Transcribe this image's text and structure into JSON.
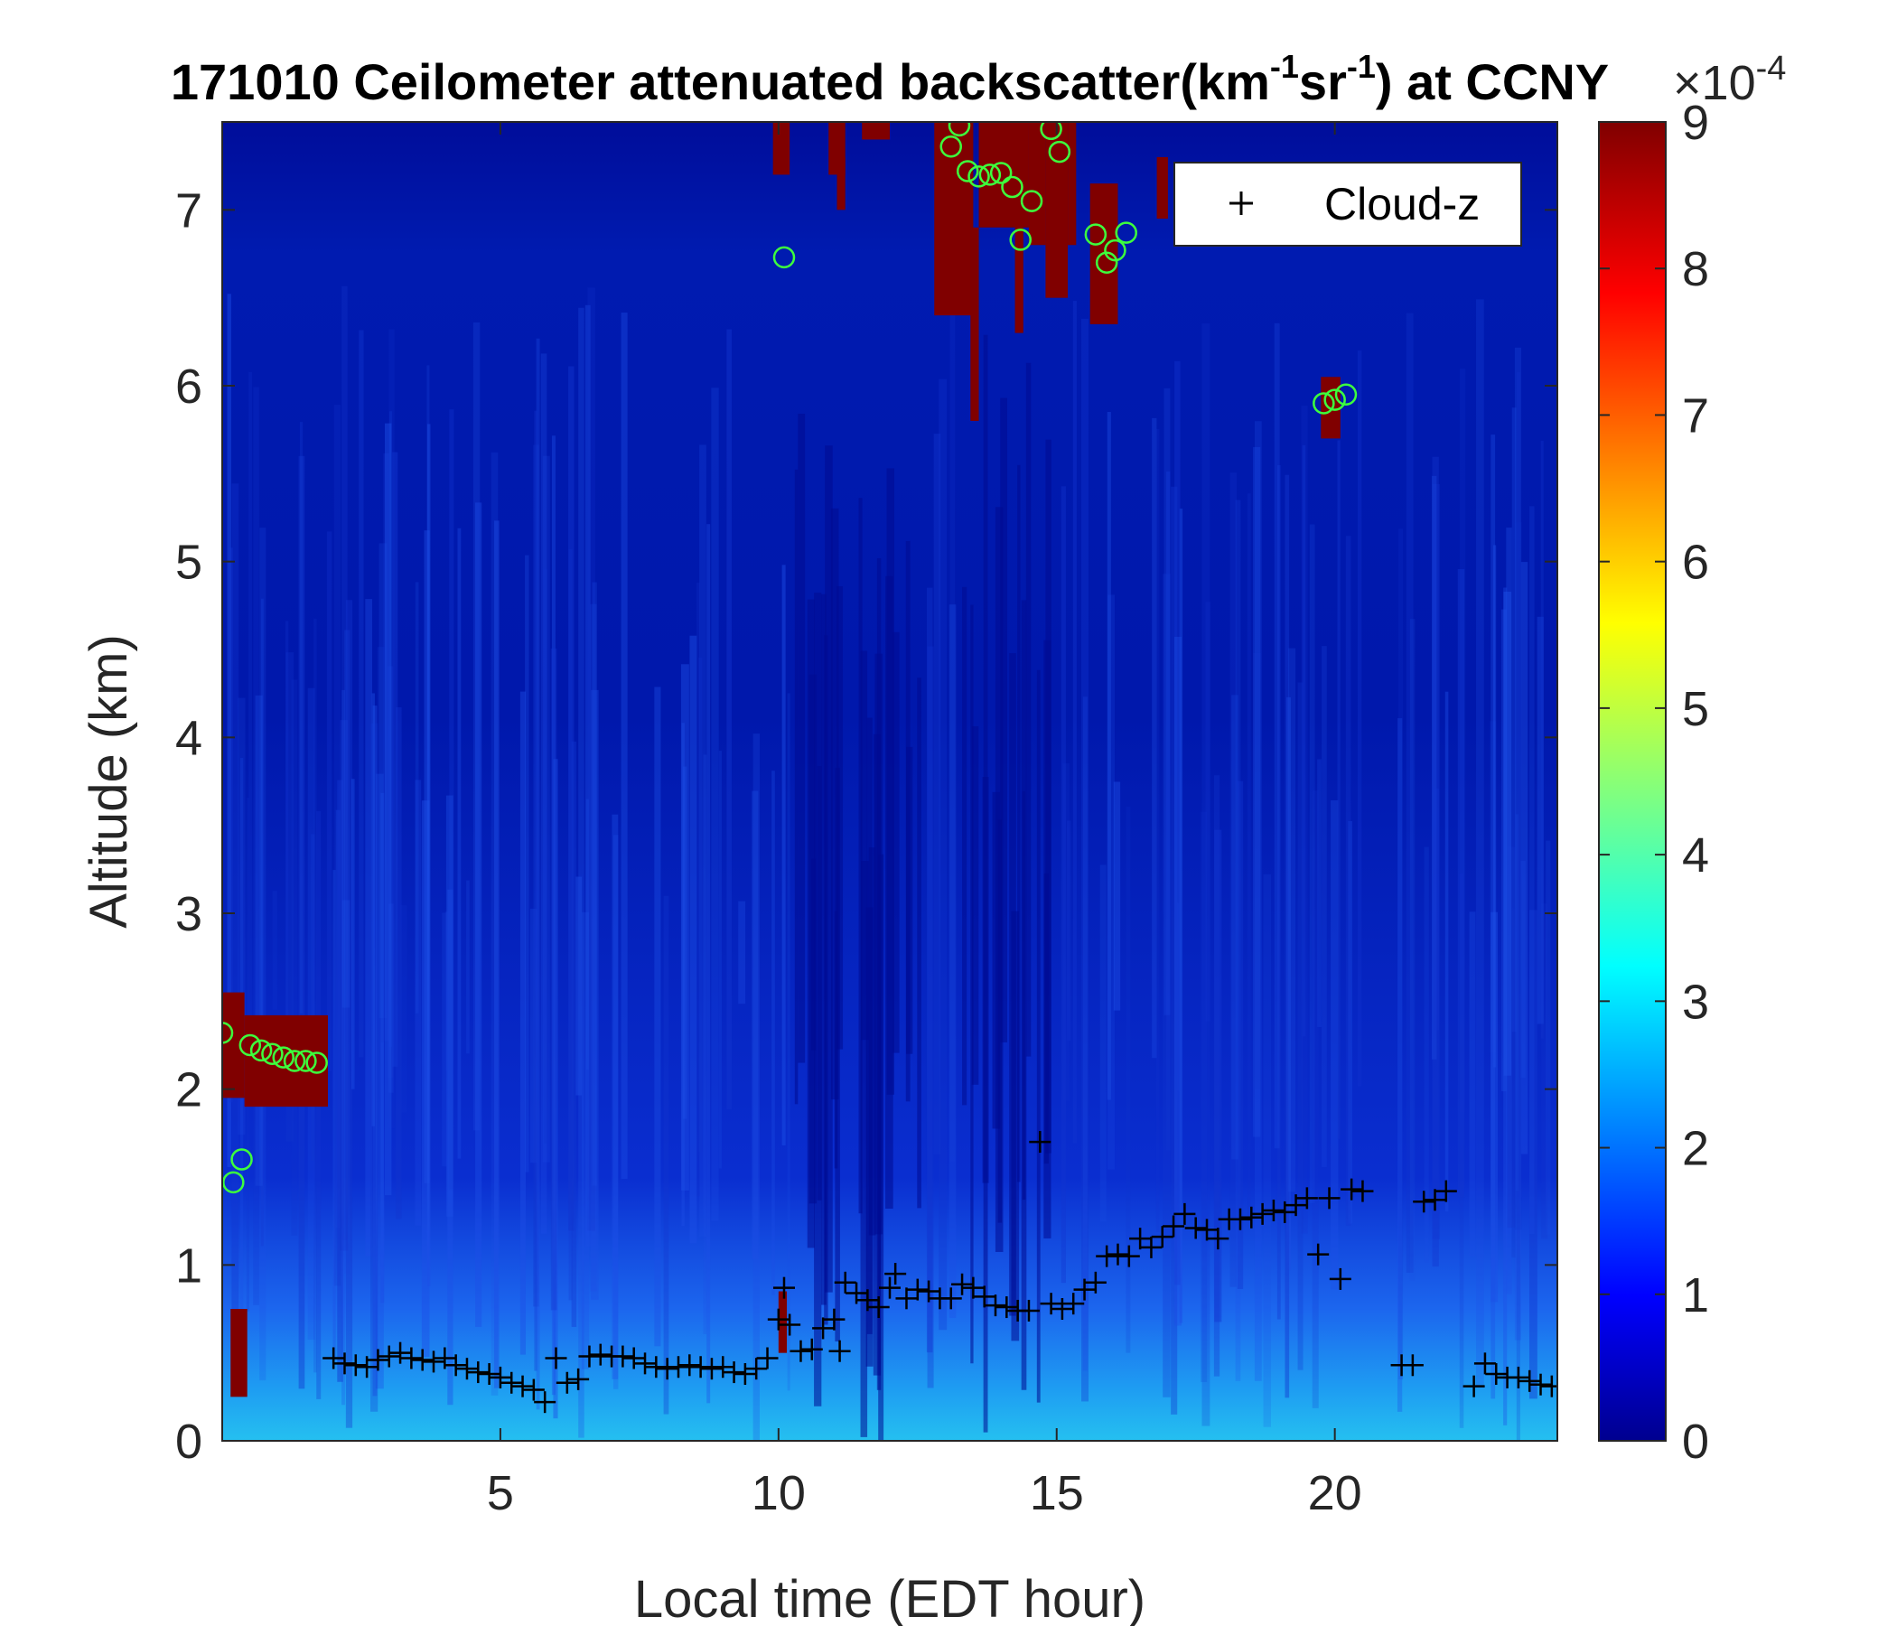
{
  "chart_data": {
    "type": "heatmap",
    "title": "171010 Ceilometer attenuated backscatter(km",
    "title_sup1": "-1",
    "title_mid": "sr",
    "title_sup2": "-1",
    "title_end": ") at CCNY",
    "xlabel": "Local time (EDT hour)",
    "ylabel": "Altitude (km)",
    "xlim": [
      0,
      24
    ],
    "ylim": [
      0,
      7.5
    ],
    "xticks": [
      5,
      10,
      15,
      20
    ],
    "yticks": [
      0,
      1,
      2,
      3,
      4,
      5,
      6,
      7
    ],
    "colorbar": {
      "ticks": [
        0,
        1,
        2,
        3,
        4,
        5,
        6,
        7,
        8,
        9
      ],
      "range": [
        0,
        9
      ],
      "multiplier_base": "×10",
      "multiplier_exp": "-4",
      "colormap": "jet"
    },
    "legend": {
      "entries": [
        "Cloud-z"
      ],
      "location": "top-right"
    },
    "colors": {
      "cloud_marker": "#000000",
      "aerosol_marker": "#3dff3d",
      "background": "#00008f"
    },
    "cloud_z": [
      [
        2.0,
        0.47
      ],
      [
        2.2,
        0.44
      ],
      [
        2.4,
        0.43
      ],
      [
        2.6,
        0.42
      ],
      [
        2.8,
        0.46
      ],
      [
        3.0,
        0.48
      ],
      [
        3.2,
        0.5
      ],
      [
        3.4,
        0.47
      ],
      [
        3.6,
        0.46
      ],
      [
        3.8,
        0.45
      ],
      [
        4.0,
        0.47
      ],
      [
        4.2,
        0.43
      ],
      [
        4.4,
        0.41
      ],
      [
        4.6,
        0.39
      ],
      [
        4.8,
        0.38
      ],
      [
        5.0,
        0.36
      ],
      [
        5.2,
        0.33
      ],
      [
        5.4,
        0.31
      ],
      [
        5.6,
        0.29
      ],
      [
        5.8,
        0.22
      ],
      [
        6.0,
        0.47
      ],
      [
        6.2,
        0.33
      ],
      [
        6.4,
        0.35
      ],
      [
        6.6,
        0.48
      ],
      [
        6.8,
        0.49
      ],
      [
        7.0,
        0.48
      ],
      [
        7.2,
        0.48
      ],
      [
        7.4,
        0.47
      ],
      [
        7.6,
        0.44
      ],
      [
        7.8,
        0.42
      ],
      [
        8.0,
        0.41
      ],
      [
        8.2,
        0.42
      ],
      [
        8.4,
        0.43
      ],
      [
        8.6,
        0.42
      ],
      [
        8.8,
        0.41
      ],
      [
        9.0,
        0.42
      ],
      [
        9.2,
        0.39
      ],
      [
        9.4,
        0.38
      ],
      [
        9.6,
        0.41
      ],
      [
        9.8,
        0.47
      ],
      [
        10.0,
        0.69
      ],
      [
        10.1,
        0.87
      ],
      [
        10.2,
        0.66
      ],
      [
        10.4,
        0.51
      ],
      [
        10.6,
        0.52
      ],
      [
        10.8,
        0.64
      ],
      [
        11.0,
        0.69
      ],
      [
        11.1,
        0.51
      ],
      [
        11.2,
        0.9
      ],
      [
        11.4,
        0.84
      ],
      [
        11.6,
        0.8
      ],
      [
        11.8,
        0.76
      ],
      [
        12.0,
        0.87
      ],
      [
        12.1,
        0.95
      ],
      [
        12.3,
        0.81
      ],
      [
        12.5,
        0.86
      ],
      [
        12.7,
        0.85
      ],
      [
        12.9,
        0.81
      ],
      [
        13.1,
        0.81
      ],
      [
        13.3,
        0.89
      ],
      [
        13.5,
        0.87
      ],
      [
        13.7,
        0.82
      ],
      [
        13.9,
        0.77
      ],
      [
        14.1,
        0.76
      ],
      [
        14.3,
        0.74
      ],
      [
        14.5,
        0.74
      ],
      [
        14.7,
        1.7
      ],
      [
        14.9,
        0.78
      ],
      [
        15.1,
        0.75
      ],
      [
        15.3,
        0.78
      ],
      [
        15.5,
        0.86
      ],
      [
        15.7,
        0.9
      ],
      [
        15.9,
        1.05
      ],
      [
        16.1,
        1.06
      ],
      [
        16.3,
        1.05
      ],
      [
        16.5,
        1.15
      ],
      [
        16.7,
        1.1
      ],
      [
        16.9,
        1.16
      ],
      [
        17.1,
        1.22
      ],
      [
        17.3,
        1.29
      ],
      [
        17.5,
        1.21
      ],
      [
        17.7,
        1.2
      ],
      [
        17.9,
        1.15
      ],
      [
        18.1,
        1.26
      ],
      [
        18.3,
        1.26
      ],
      [
        18.5,
        1.27
      ],
      [
        18.7,
        1.29
      ],
      [
        18.9,
        1.31
      ],
      [
        19.1,
        1.3
      ],
      [
        19.3,
        1.34
      ],
      [
        19.5,
        1.38
      ],
      [
        19.7,
        1.06
      ],
      [
        19.9,
        1.38
      ],
      [
        20.1,
        0.92
      ],
      [
        20.3,
        1.43
      ],
      [
        20.5,
        1.42
      ],
      [
        21.2,
        0.43
      ],
      [
        21.4,
        0.43
      ],
      [
        21.6,
        1.36
      ],
      [
        21.8,
        1.37
      ],
      [
        22.0,
        1.42
      ],
      [
        22.5,
        0.31
      ],
      [
        22.7,
        0.44
      ],
      [
        22.9,
        0.38
      ],
      [
        23.1,
        0.36
      ],
      [
        23.3,
        0.36
      ],
      [
        23.5,
        0.34
      ],
      [
        23.7,
        0.32
      ],
      [
        23.9,
        0.31
      ]
    ],
    "aerosol_layer": [
      [
        0.0,
        2.32
      ],
      [
        0.2,
        1.47
      ],
      [
        0.35,
        1.6
      ],
      [
        0.5,
        2.25
      ],
      [
        0.7,
        2.22
      ],
      [
        0.9,
        2.2
      ],
      [
        1.1,
        2.18
      ],
      [
        1.3,
        2.16
      ],
      [
        1.5,
        2.16
      ],
      [
        1.7,
        2.15
      ],
      [
        10.1,
        6.73
      ],
      [
        13.1,
        7.36
      ],
      [
        13.25,
        7.48
      ],
      [
        13.4,
        7.22
      ],
      [
        13.6,
        7.19
      ],
      [
        13.8,
        7.2
      ],
      [
        14.0,
        7.21
      ],
      [
        14.2,
        7.13
      ],
      [
        14.35,
        6.83
      ],
      [
        14.55,
        7.05
      ],
      [
        14.9,
        7.46
      ],
      [
        15.05,
        7.33
      ],
      [
        15.7,
        6.86
      ],
      [
        15.9,
        6.7
      ],
      [
        16.05,
        6.77
      ],
      [
        16.25,
        6.87
      ],
      [
        19.8,
        5.9
      ],
      [
        20.0,
        5.92
      ],
      [
        20.2,
        5.95
      ]
    ],
    "saturated_regions": [
      [
        0.0,
        0.4,
        1.95,
        2.55
      ],
      [
        0.4,
        1.9,
        1.9,
        2.42
      ],
      [
        0.15,
        0.45,
        0.25,
        0.75
      ],
      [
        9.9,
        10.2,
        7.2,
        7.5
      ],
      [
        10.0,
        10.15,
        0.5,
        0.85
      ],
      [
        10.9,
        11.2,
        7.2,
        7.5
      ],
      [
        11.05,
        11.2,
        7.0,
        7.3
      ],
      [
        11.5,
        12.0,
        7.4,
        7.5
      ],
      [
        12.8,
        13.5,
        6.4,
        7.5
      ],
      [
        13.45,
        13.6,
        5.8,
        6.9
      ],
      [
        13.6,
        14.5,
        6.9,
        7.5
      ],
      [
        14.25,
        14.4,
        6.3,
        7.3
      ],
      [
        14.5,
        14.8,
        6.8,
        7.5
      ],
      [
        14.8,
        15.2,
        6.5,
        7.5
      ],
      [
        15.2,
        15.35,
        6.8,
        7.5
      ],
      [
        15.6,
        16.1,
        6.35,
        7.15
      ],
      [
        16.8,
        17.0,
        6.95,
        7.3
      ],
      [
        19.75,
        20.1,
        5.7,
        6.05
      ]
    ]
  }
}
